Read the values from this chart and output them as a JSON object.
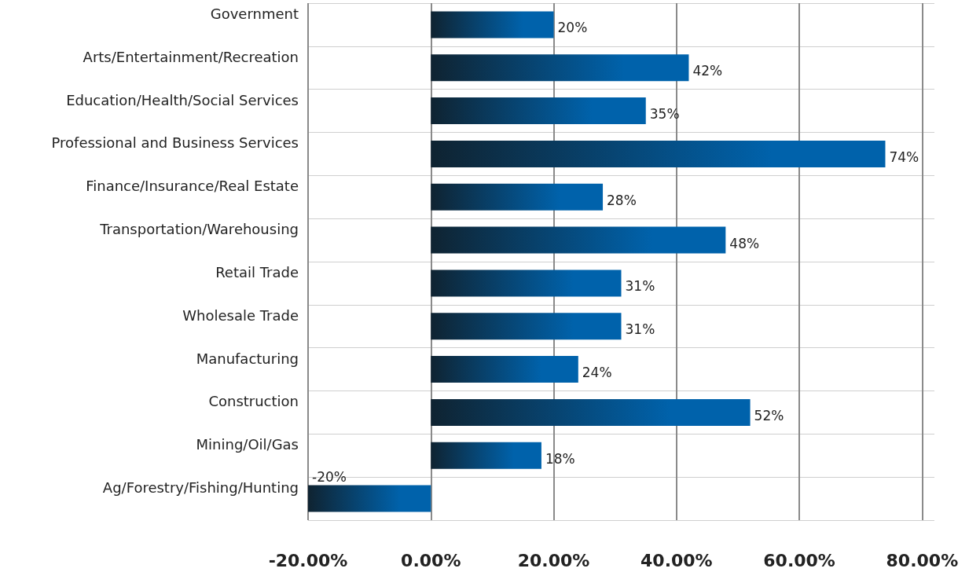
{
  "chart_data": {
    "type": "bar",
    "orientation": "horizontal",
    "categories": [
      "Government",
      "Arts/Entertainment/Recreation",
      "Education/Health/Social Services",
      "Professional and Business Services",
      "Finance/Insurance/Real Estate",
      "Transportation/Warehousing",
      "Retail Trade",
      "Wholesale Trade",
      "Manufacturing",
      "Construction",
      "Mining/Oil/Gas",
      "Ag/Forestry/Fishing/Hunting"
    ],
    "values": [
      20,
      42,
      35,
      74,
      28,
      48,
      31,
      31,
      24,
      52,
      18,
      -20
    ],
    "value_labels": [
      "20%",
      "42%",
      "35%",
      "74%",
      "28%",
      "48%",
      "31%",
      "31%",
      "24%",
      "52%",
      "18%",
      "-20%"
    ],
    "color": "#0062ab",
    "xlim": [
      -20,
      82
    ],
    "xticks": [
      {
        "value": -20,
        "label": "-20.00%"
      },
      {
        "value": 0,
        "label": "0.00%"
      },
      {
        "value": 20,
        "label": "20.00%"
      },
      {
        "value": 40,
        "label": "40.00%"
      },
      {
        "value": 60,
        "label": "60.00%"
      },
      {
        "value": 80,
        "label": "80.00%"
      }
    ],
    "grid": true
  }
}
